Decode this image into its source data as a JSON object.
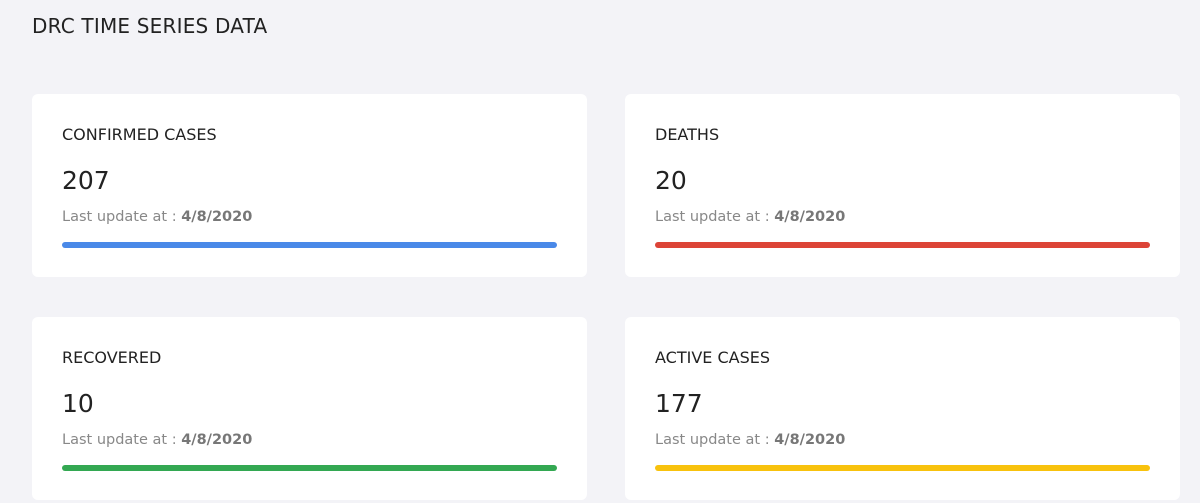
{
  "header": {
    "title": "DRC TIME SERIES DATA"
  },
  "update_label": "Last update at :",
  "cards": [
    {
      "label": "CONFIRMED CASES",
      "value": 207,
      "date": "4/8/2020",
      "color": "#4a89e8"
    },
    {
      "label": "DEATHS",
      "value": 20,
      "date": "4/8/2020",
      "color": "#dc4437"
    },
    {
      "label": "RECOVERED",
      "value": 10,
      "date": "4/8/2020",
      "color": "#33a852"
    },
    {
      "label": "ACTIVE CASES",
      "value": 177,
      "date": "4/8/2020",
      "color": "#f8c20d"
    }
  ]
}
